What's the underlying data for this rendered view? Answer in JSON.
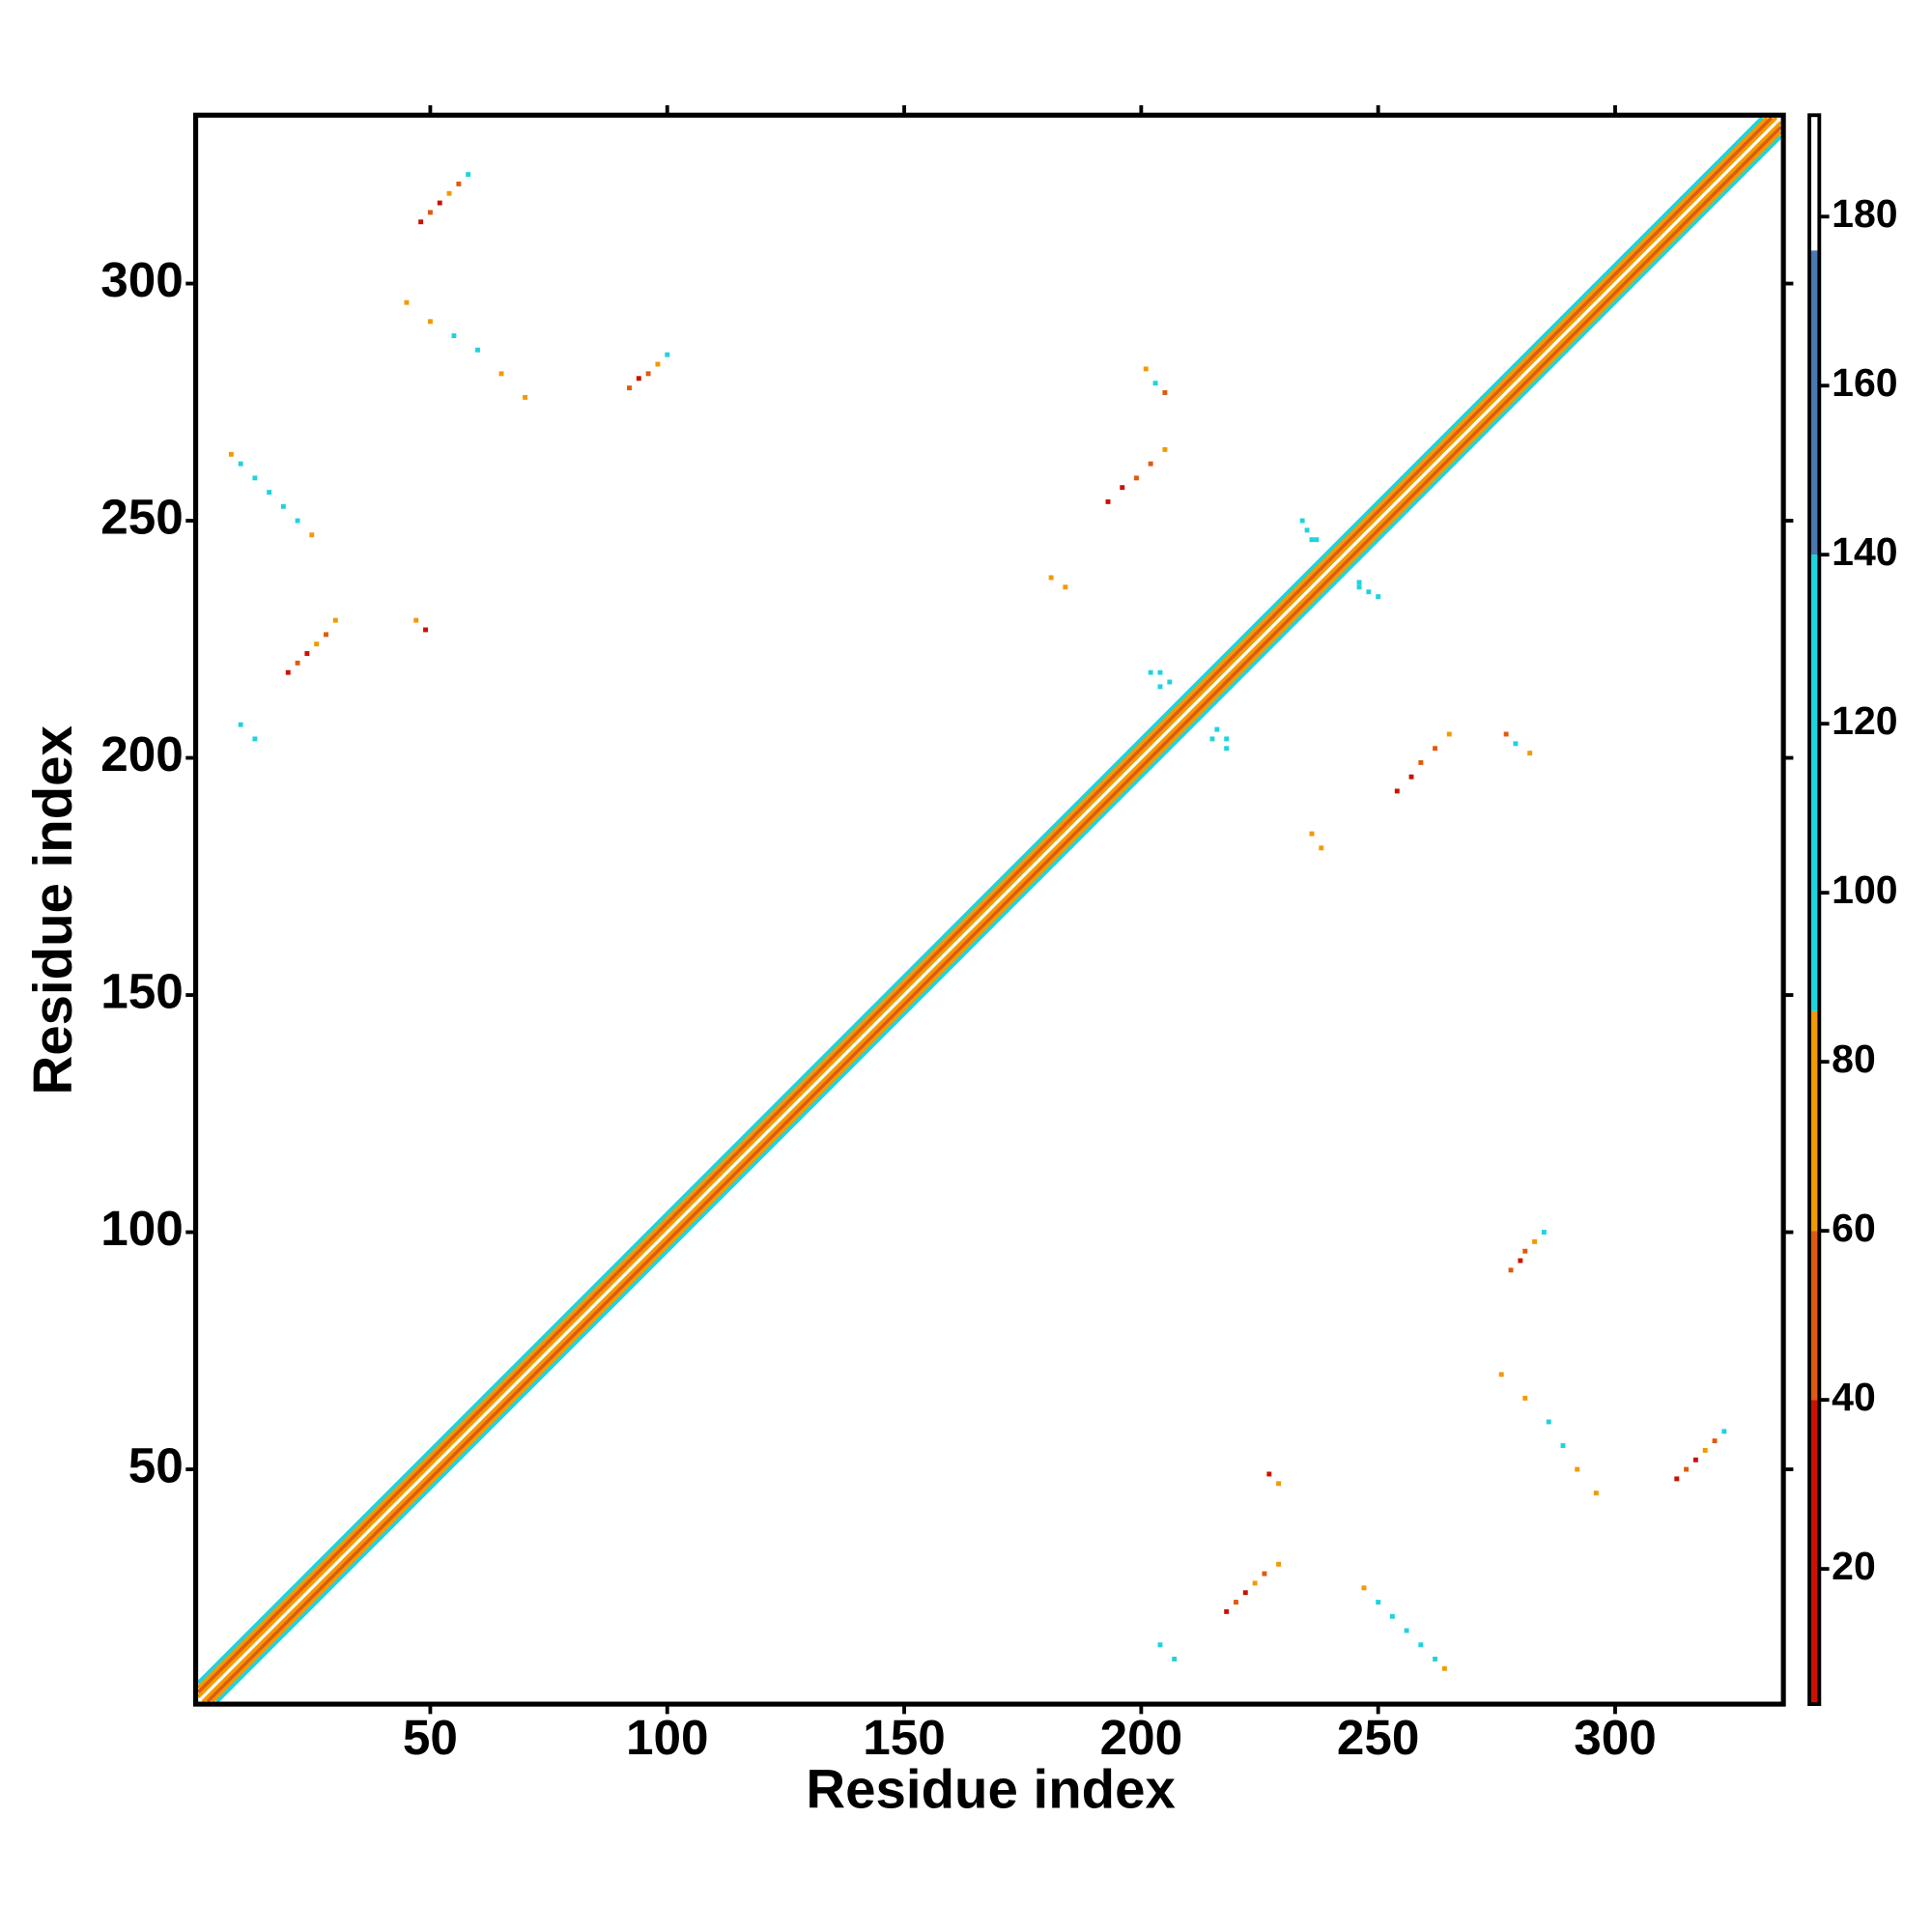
{
  "chart_data": {
    "type": "heatmap",
    "xlabel": "Residue index",
    "ylabel": "Residue index",
    "xlim": [
      0.5,
      335.5
    ],
    "ylim": [
      0.5,
      335.5
    ],
    "xticks": [
      50,
      100,
      150,
      200,
      250,
      300
    ],
    "yticks": [
      50,
      100,
      150,
      200,
      250,
      300
    ],
    "clim": [
      4,
      192
    ],
    "cticks": [
      20,
      40,
      60,
      80,
      100,
      120,
      140,
      160,
      180
    ],
    "colorscale": [
      {
        "from": 4,
        "to": 40,
        "color": "#cc1100"
      },
      {
        "from": 40,
        "to": 60,
        "color": "#e05a10"
      },
      {
        "from": 60,
        "to": 86,
        "color": "#f29a00"
      },
      {
        "from": 86,
        "to": 140,
        "color": "#1fd3de"
      },
      {
        "from": 140,
        "to": 176,
        "color": "#4a78b0"
      },
      {
        "from": 176,
        "to": 192,
        "color": "#ffffff"
      }
    ],
    "symmetric": true,
    "diagonal": {
      "offsets": [
        0,
        1,
        2,
        3,
        4
      ],
      "values": [
        180,
        70,
        45,
        75,
        100
      ]
    },
    "contacts": {
      "i": [
        20,
        22,
        24,
        26,
        28,
        30,
        10,
        13,
        16,
        19,
        22,
        25,
        48,
        50,
        52,
        54,
        56,
        58,
        45,
        50,
        55,
        60,
        65,
        70,
        92,
        94,
        96,
        98,
        100,
        193,
        196,
        199,
        202,
        205,
        201,
        203,
        205,
        47,
        49,
        181,
        184,
        204,
        206,
        215,
        218,
        235,
        237,
        246,
        250,
        10,
        13,
        8
      ],
      "j": [
        218,
        220,
        222,
        224,
        226,
        229,
        262,
        259,
        256,
        253,
        250,
        247,
        313,
        315,
        317,
        319,
        321,
        323,
        296,
        292,
        289,
        286,
        281,
        276,
        278,
        280,
        281,
        283,
        285,
        254,
        257,
        259,
        262,
        265,
        282,
        279,
        277,
        229,
        227,
        238,
        236,
        218,
        216,
        204,
        202,
        248,
        246,
        236,
        234,
        207,
        204,
        264
      ],
      "values": [
        30,
        50,
        40,
        65,
        45,
        70,
        95,
        110,
        90,
        120,
        100,
        80,
        40,
        60,
        30,
        70,
        55,
        95,
        80,
        75,
        95,
        110,
        65,
        80,
        45,
        30,
        60,
        70,
        100,
        40,
        30,
        60,
        50,
        75,
        70,
        90,
        45,
        80,
        40,
        70,
        80,
        110,
        95,
        120,
        100,
        110,
        95,
        105,
        120,
        100,
        95,
        75
      ]
    }
  }
}
